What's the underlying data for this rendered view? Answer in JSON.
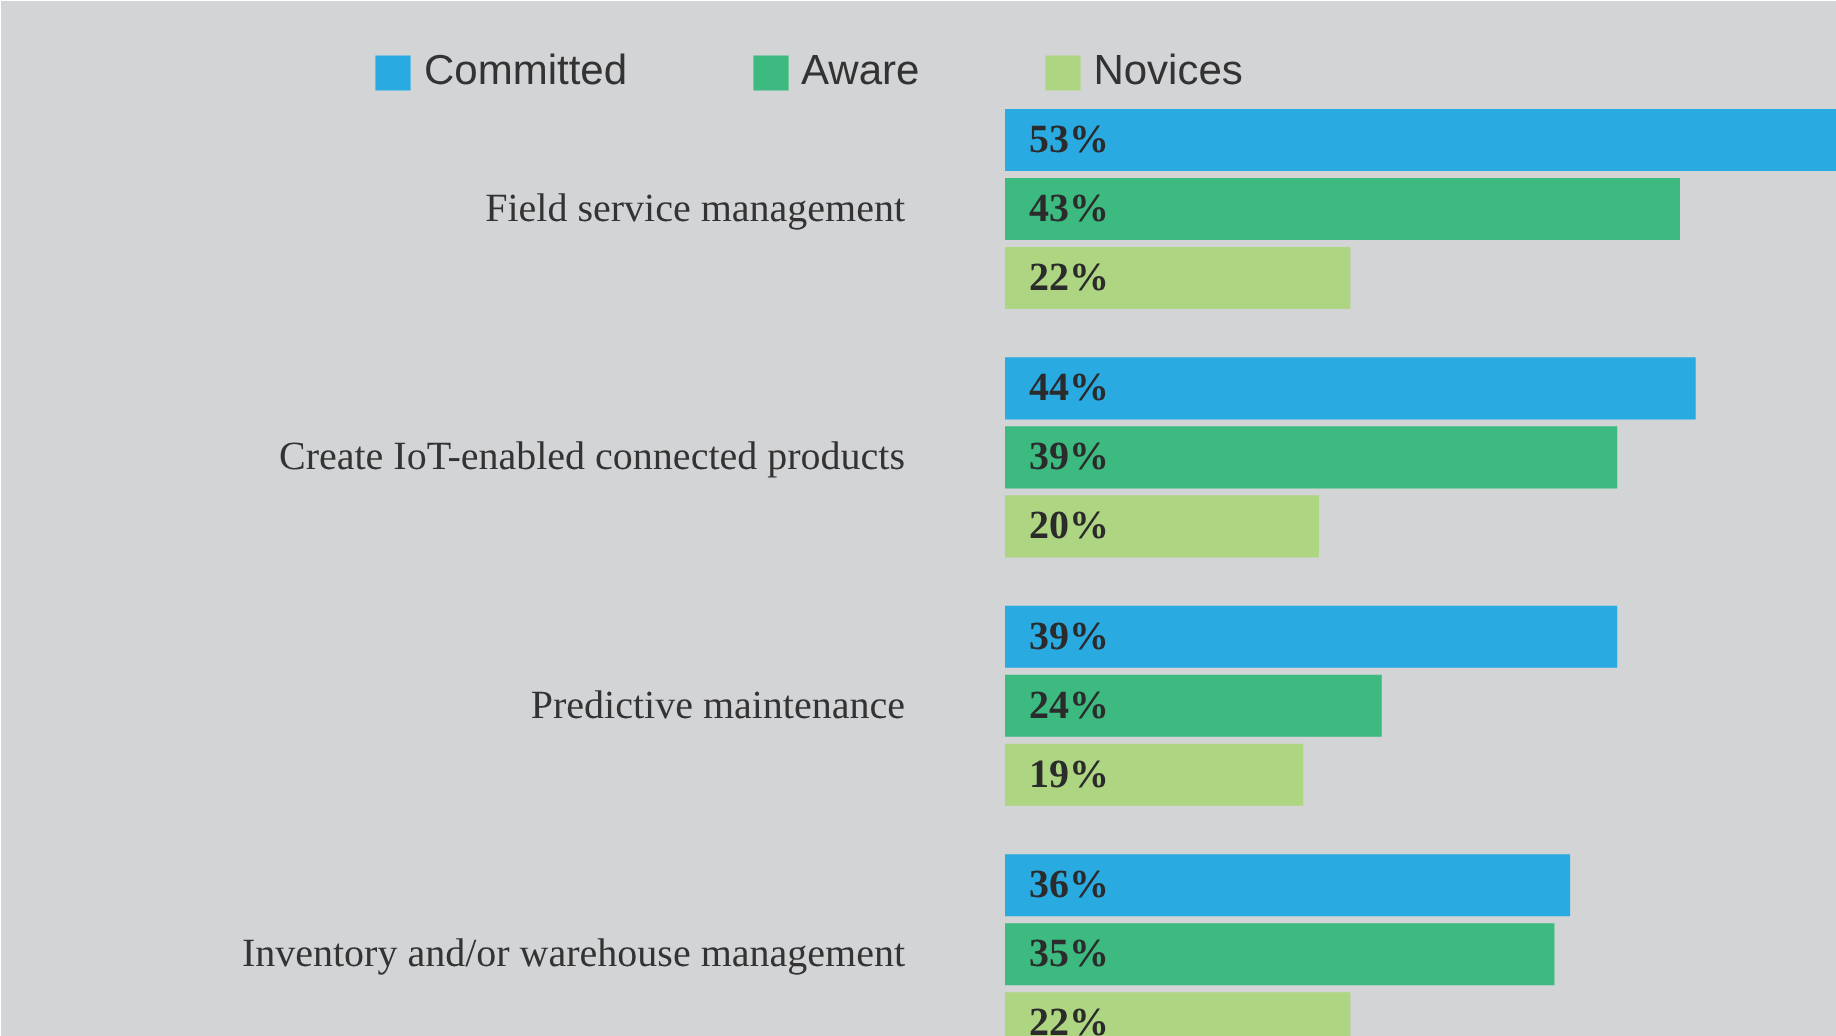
{
  "chart_data": {
    "type": "bar",
    "orientation": "horizontal",
    "legend": "top",
    "tick_labels": "y",
    "categories": [
      "Field service management",
      "Create IoT-enabled connected products",
      "Predictive maintenance",
      "Inventory and/or warehouse management"
    ],
    "series": [
      {
        "name": "Committed",
        "color": "#29abe2",
        "values": [
          53,
          44,
          39,
          36
        ],
        "value_labels": [
          "53%",
          "44%",
          "39%",
          "36%"
        ]
      },
      {
        "name": "Aware",
        "color": "#3dba80",
        "values": [
          43,
          39,
          24,
          35
        ],
        "value_labels": [
          "43%",
          "39%",
          "24%",
          "35%"
        ]
      },
      {
        "name": "Novices",
        "color": "#aed581",
        "values": [
          22,
          20,
          19,
          22
        ],
        "value_labels": [
          "22%",
          "20%",
          "19%",
          "22%"
        ]
      }
    ]
  }
}
